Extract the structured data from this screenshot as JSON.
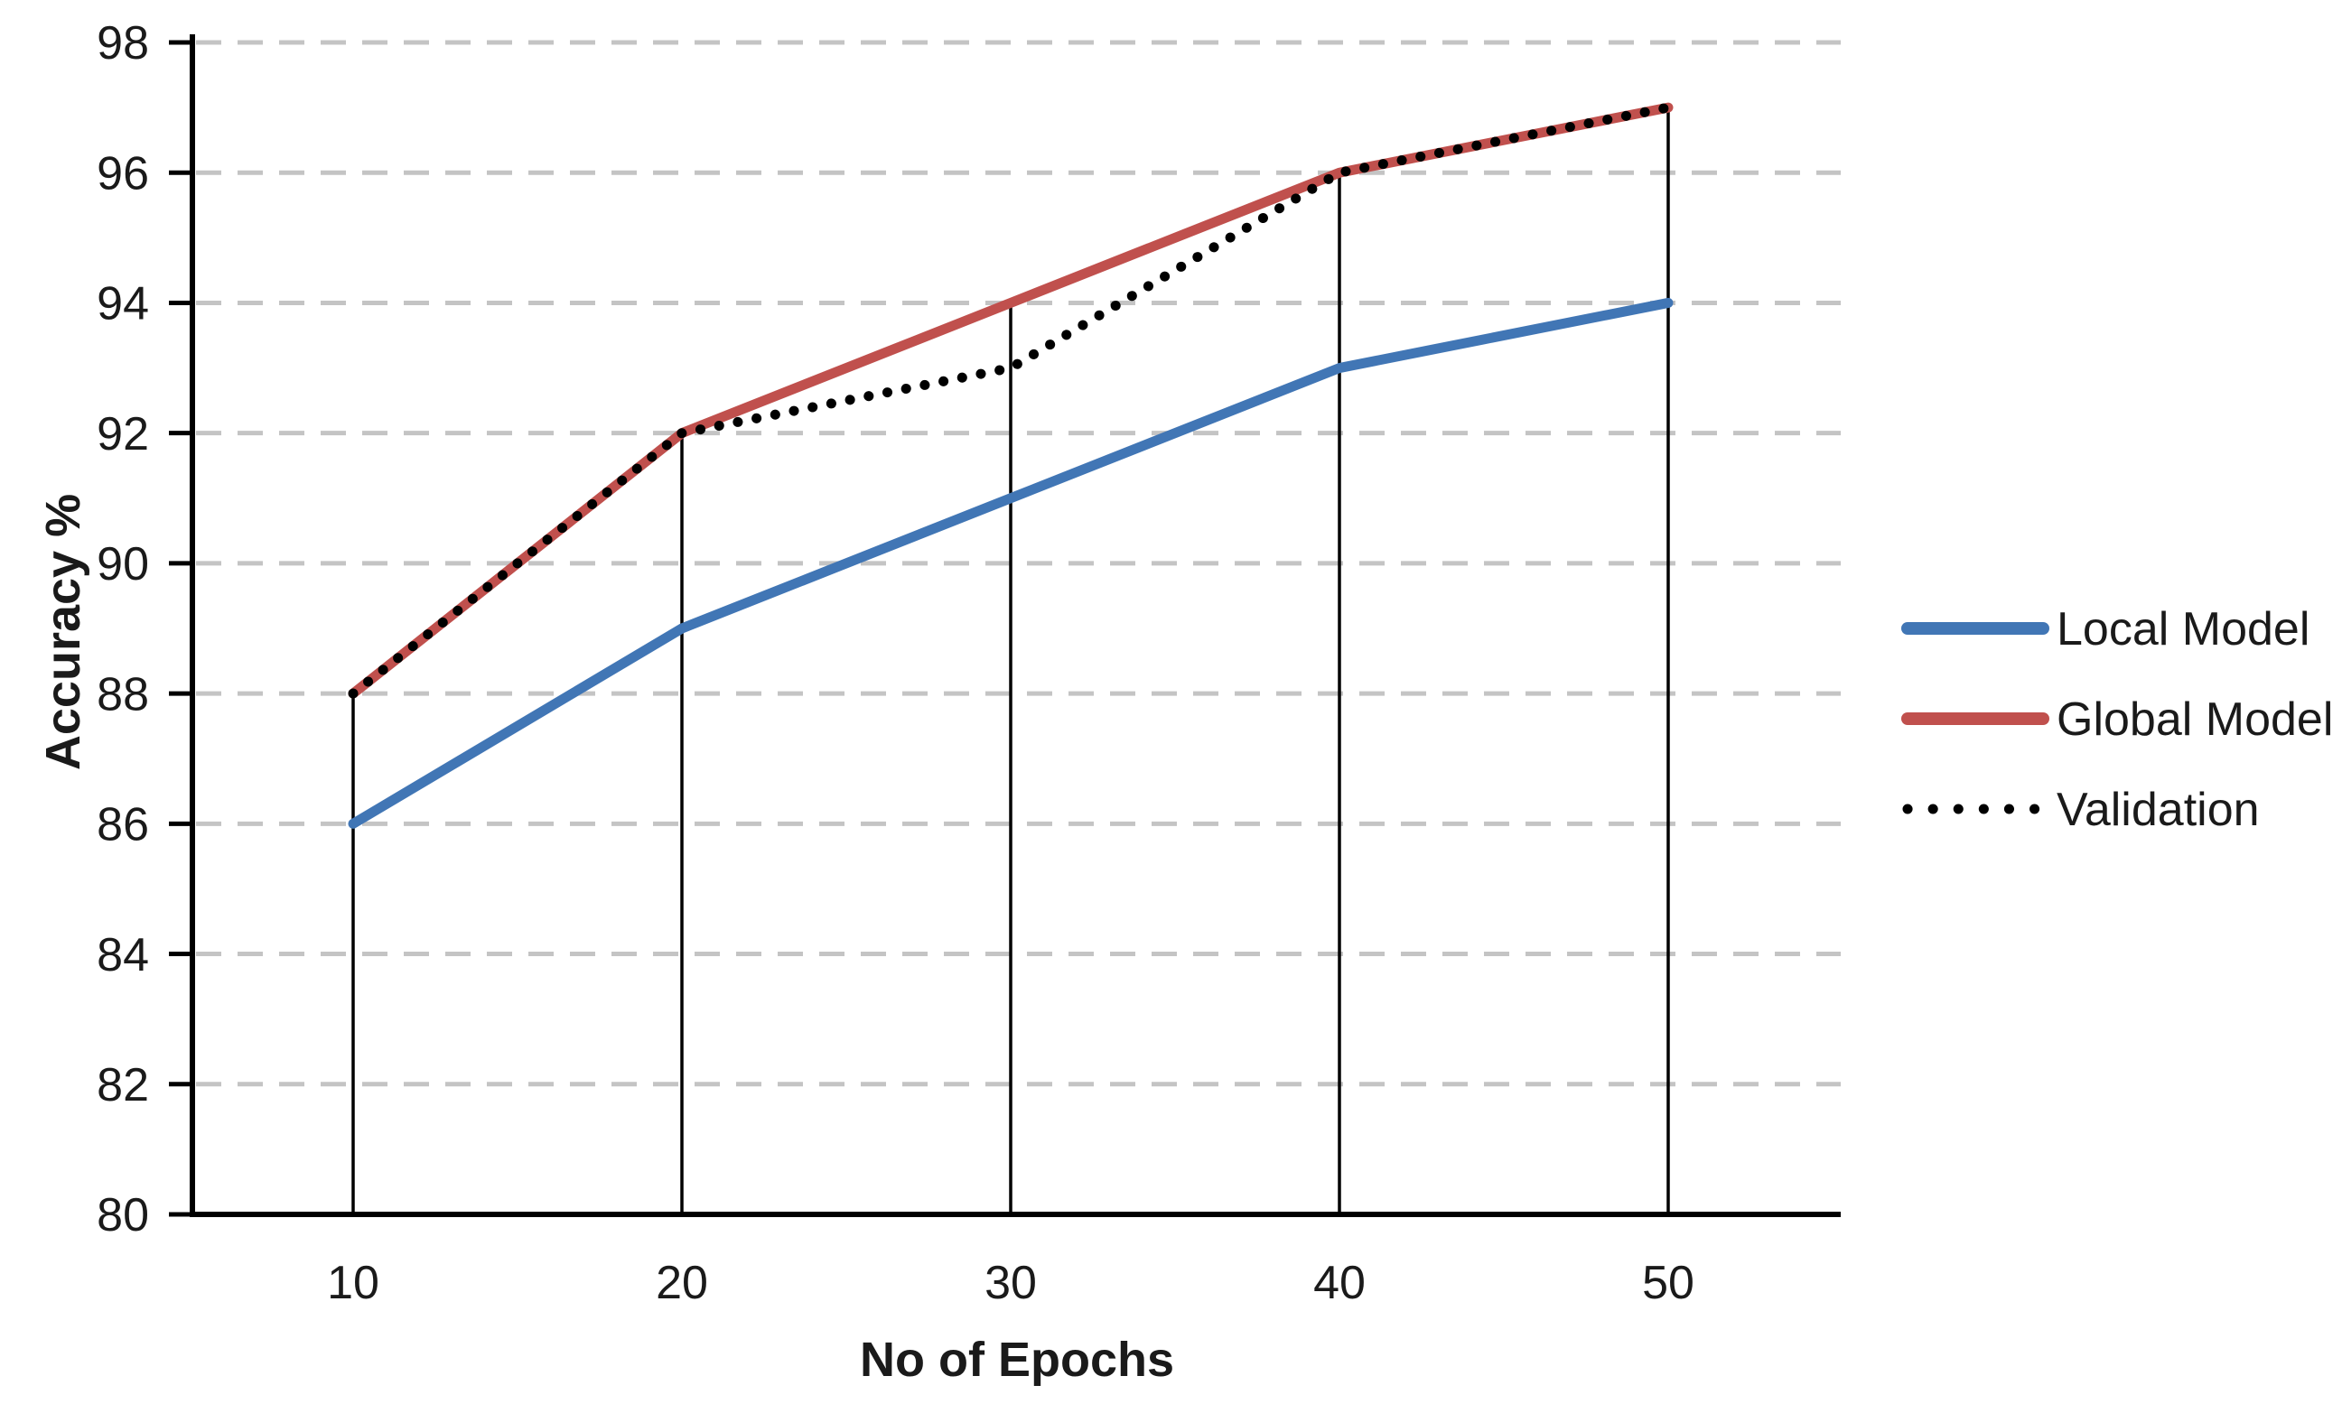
{
  "chart_data": {
    "type": "line",
    "title": "",
    "xlabel": "No of Epochs",
    "ylabel": "Accuracy %",
    "x": [
      10,
      20,
      30,
      40,
      50
    ],
    "xticks": [
      10,
      20,
      30,
      40,
      50
    ],
    "yticks": [
      80,
      82,
      84,
      86,
      88,
      90,
      92,
      94,
      96,
      98
    ],
    "ylim": [
      80,
      98
    ],
    "grid": "horizontal-dashed",
    "drop_lines": true,
    "legend_position": "right",
    "series": [
      {
        "name": "Local Model",
        "values": [
          86,
          89,
          91,
          93,
          94
        ],
        "color": "#4176B5",
        "style": "solid"
      },
      {
        "name": "Global Model",
        "values": [
          88,
          92,
          94,
          96,
          97
        ],
        "color": "#C0504D",
        "style": "solid"
      },
      {
        "name": "Validation",
        "values": [
          88,
          92,
          93,
          96,
          97
        ],
        "color": "#000000",
        "style": "dotted"
      }
    ],
    "colors": {
      "gridline": "#C4C4C4",
      "axis": "#000000",
      "text": "#1a1a1a",
      "background": "#ffffff"
    }
  }
}
